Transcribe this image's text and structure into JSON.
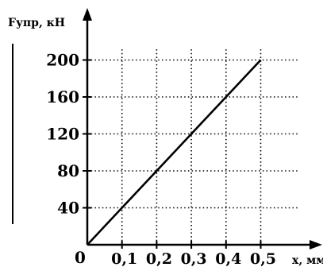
{
  "chart_data": {
    "type": "line",
    "title": "",
    "xlabel": "x, мм",
    "ylabel": "Fупр, кН",
    "origin_label": "0",
    "x_ticks": [
      "0,1",
      "0,2",
      "0,3",
      "0,4",
      "0,5"
    ],
    "y_ticks": [
      "40",
      "80",
      "120",
      "160",
      "200"
    ],
    "xlim": [
      0,
      0.6
    ],
    "ylim": [
      0,
      240
    ],
    "grid": true,
    "series": [
      {
        "x": [
          0,
          0.1,
          0.2,
          0.3,
          0.4,
          0.5
        ],
        "y": [
          0,
          40,
          80,
          120,
          160,
          200
        ]
      }
    ]
  }
}
